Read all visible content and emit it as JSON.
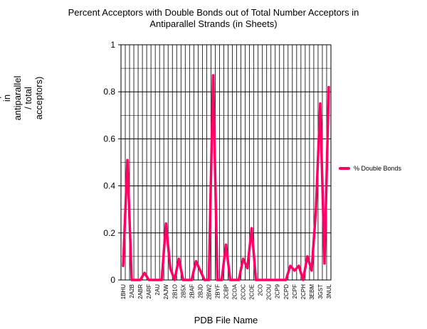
{
  "chart_data": {
    "type": "line",
    "title_line1": "Percent Acceptors with Double Bonds out of Total Number Acceptors in",
    "title_line2": "Antiparallel Strands (in Sheets)",
    "xlabel": "PDB File Name",
    "ylabel": "Percentage\n(double\nbond\nacceptors\nin\nantiparallel\n/ total\nacceptors)",
    "ylim": [
      0,
      1
    ],
    "yticks": [
      "0",
      "0.2",
      "0.4",
      "0.6",
      "0.8",
      "1"
    ],
    "grid": true,
    "legend_position": "right",
    "series": [
      {
        "name": "% Double Bonds",
        "color": "#ff0066",
        "values": [
          0.06,
          0.51,
          0.0,
          0.0,
          0.0,
          0.03,
          0.0,
          0.0,
          0.0,
          0.0,
          0.24,
          0.05,
          0.0,
          0.09,
          0.0,
          0.0,
          0.0,
          0.08,
          0.04,
          0.0,
          0.0,
          0.87,
          0.0,
          0.0,
          0.15,
          0.0,
          0.0,
          0.0,
          0.09,
          0.05,
          0.22,
          0.0,
          0.0,
          0.0,
          0.0,
          0.0,
          0.0,
          0.0,
          0.0,
          0.06,
          0.04,
          0.06,
          0.0,
          0.1,
          0.04,
          0.3,
          0.75,
          0.07,
          0.82
        ]
      }
    ],
    "x_tick_labels": [
      "1BHU",
      "2A2B",
      "2ABR",
      "2ARF",
      "2AU",
      "2AJW",
      "2B1O",
      "2B5X",
      "2BAF",
      "2BJD",
      "2BW2",
      "2BYF",
      "2CBP",
      "2COA",
      "2COC",
      "2COE",
      "2CO",
      "2COU",
      "2CP9",
      "2CPD",
      "2CPF",
      "2CPH",
      "3EBM",
      "3GST",
      "3NUL"
    ]
  }
}
